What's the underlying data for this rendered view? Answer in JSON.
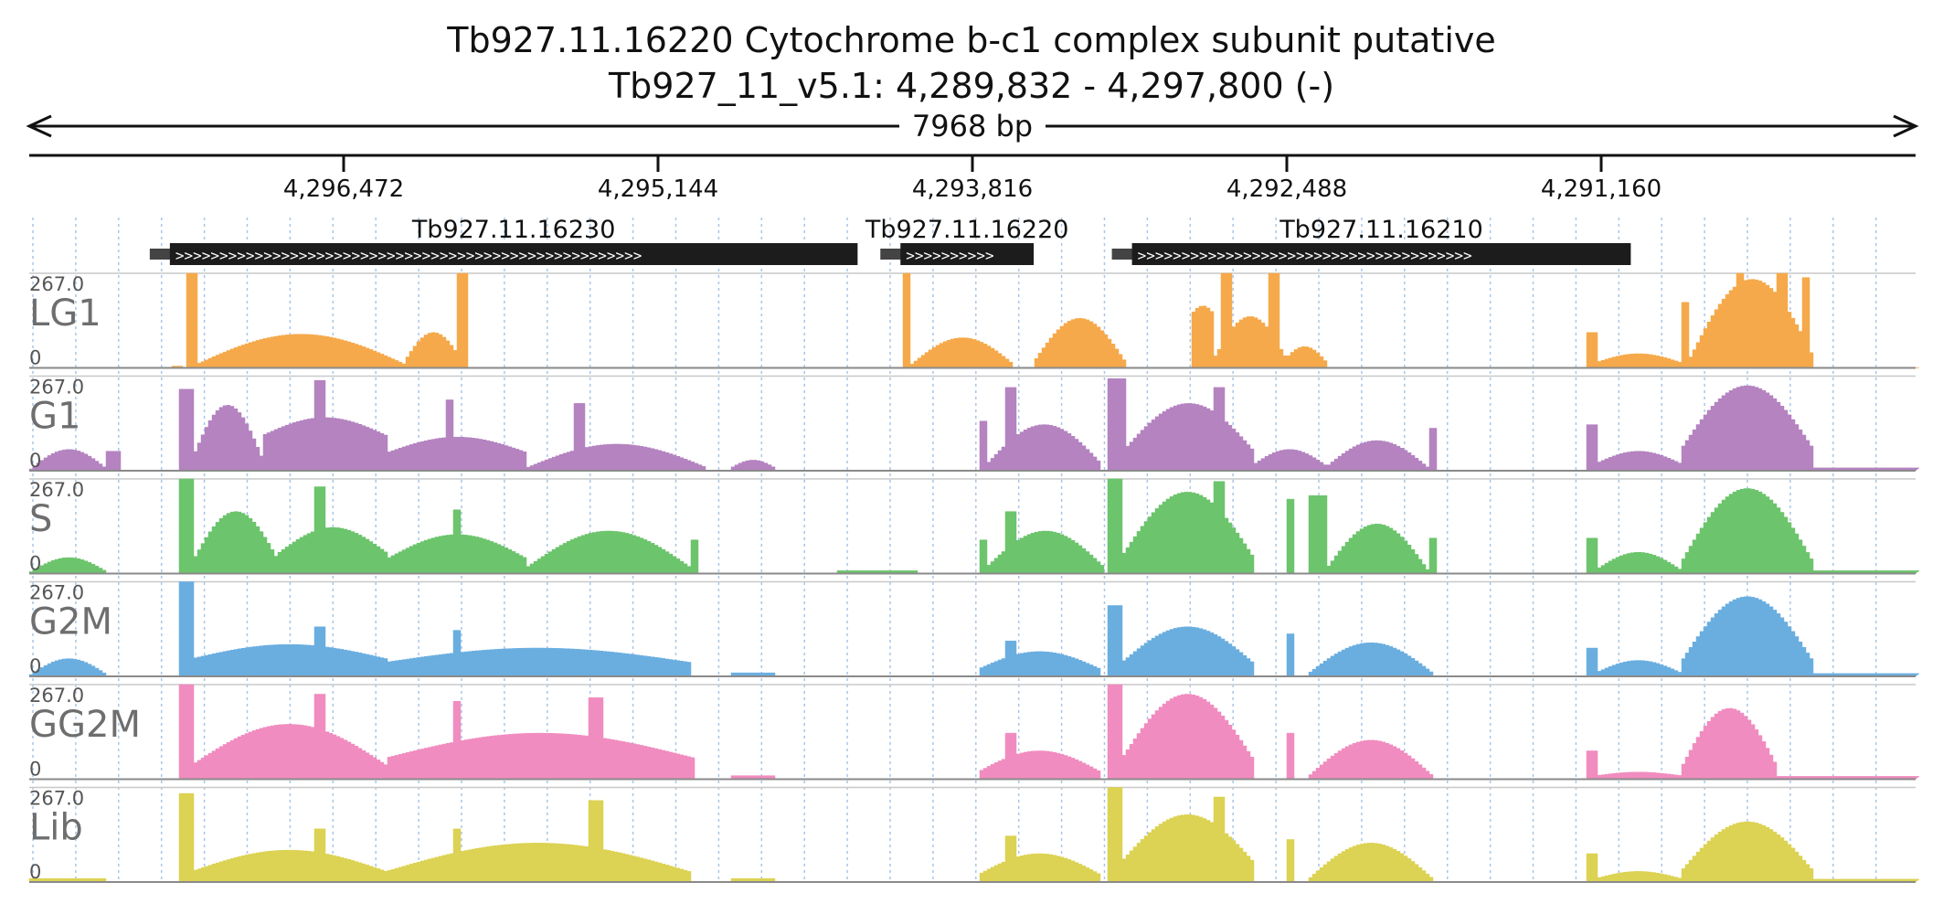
{
  "title": {
    "line1": "Tb927.11.16220  Cytochrome b-c1 complex subunit  putative",
    "line2": "Tb927_11_v5.1: 4,289,832 - 4,297,800 (-)"
  },
  "span_label": "7968 bp",
  "chart_data": {
    "type": "area",
    "genome": {
      "contig": "Tb927_11_v5.1",
      "start": 4289832,
      "end": 4297800,
      "strand": "-",
      "orientation": "reversed",
      "length_label": "7968 bp"
    },
    "ticks": [
      {
        "pos": 4296472,
        "label": "4,296,472"
      },
      {
        "pos": 4295144,
        "label": "4,295,144"
      },
      {
        "pos": 4293816,
        "label": "4,293,816"
      },
      {
        "pos": 4292488,
        "label": "4,292,488"
      },
      {
        "pos": 4291160,
        "label": "4,291,160"
      }
    ],
    "genes": [
      {
        "name": "Tb927.11.16230",
        "start": 4294301,
        "end": 4297206
      },
      {
        "name": "Tb927.11.16220",
        "start": 4293557,
        "end": 4294120
      },
      {
        "name": "Tb927.11.16210",
        "start": 4291035,
        "end": 4293142
      }
    ],
    "tracks": [
      {
        "name": "LG1",
        "color": "#f5a94a",
        "ymax": 267.0,
        "ymax_label": "267.0",
        "ymin_label": "0"
      },
      {
        "name": "G1",
        "color": "#b483c0",
        "ymax": 267.0,
        "ymax_label": "267.0",
        "ymin_label": "0"
      },
      {
        "name": "S",
        "color": "#6cc46c",
        "ymax": 267.0,
        "ymax_label": "267.0",
        "ymin_label": "0"
      },
      {
        "name": "G2M",
        "color": "#6aaee0",
        "ymax": 267.0,
        "ymax_label": "267.0",
        "ymin_label": "0"
      },
      {
        "name": "GG2M",
        "color": "#f08cbf",
        "ymax": 267.0,
        "ymax_label": "267.0",
        "ymin_label": "0"
      },
      {
        "name": "Lib",
        "color": "#dcd253",
        "ymax": 267.0,
        "ymax_label": "267.0",
        "ymin_label": "0"
      }
    ],
    "profiles": {
      "LG1": [
        {
          "from": 4297212,
          "to": 4297152,
          "shape": "flat",
          "level": 5
        },
        {
          "from": 4297150,
          "to": 4297100,
          "shape": "flat",
          "level": 267
        },
        {
          "from": 4297100,
          "to": 4296220,
          "shape": "hump",
          "base": 10,
          "level": 95
        },
        {
          "from": 4296220,
          "to": 4295980,
          "shape": "hump",
          "base": 20,
          "level": 100
        },
        {
          "from": 4296000,
          "to": 4295950,
          "shape": "flat",
          "level": 267
        },
        {
          "from": 4294120,
          "to": 4294080,
          "shape": "flat",
          "level": 267
        },
        {
          "from": 4294080,
          "to": 4293650,
          "shape": "hump",
          "base": 10,
          "level": 85
        },
        {
          "from": 4293560,
          "to": 4293180,
          "shape": "hump",
          "base": 20,
          "level": 140
        },
        {
          "from": 4292900,
          "to": 4292800,
          "shape": "hump",
          "base": 150,
          "level": 175
        },
        {
          "from": 4292800,
          "to": 4292500,
          "shape": "hump",
          "base": 30,
          "level": 145
        },
        {
          "from": 4292780,
          "to": 4292730,
          "shape": "flat",
          "level": 267
        },
        {
          "from": 4292580,
          "to": 4292520,
          "shape": "flat",
          "level": 267
        },
        {
          "from": 4292520,
          "to": 4292320,
          "shape": "hump",
          "base": 10,
          "level": 60
        },
        {
          "from": 4291230,
          "to": 4291190,
          "shape": "flat",
          "level": 100
        },
        {
          "from": 4291190,
          "to": 4290830,
          "shape": "hump",
          "base": 15,
          "level": 40
        },
        {
          "from": 4290830,
          "to": 4290790,
          "shape": "flat",
          "level": 185
        },
        {
          "from": 4290790,
          "to": 4290270,
          "shape": "hump",
          "base": 30,
          "level": 250
        },
        {
          "from": 4290600,
          "to": 4290560,
          "shape": "flat",
          "level": 267
        },
        {
          "from": 4290420,
          "to": 4290380,
          "shape": "flat",
          "level": 267
        },
        {
          "from": 4290320,
          "to": 4290290,
          "shape": "flat",
          "level": 255
        }
      ],
      "G1": [
        {
          "from": 4297800,
          "to": 4297480,
          "shape": "hump",
          "base": 5,
          "level": 60
        },
        {
          "from": 4297480,
          "to": 4297420,
          "shape": "flat",
          "level": 55
        },
        {
          "from": 4297180,
          "to": 4297120,
          "shape": "flat",
          "level": 230
        },
        {
          "from": 4297120,
          "to": 4296820,
          "shape": "hump",
          "base": 30,
          "level": 185
        },
        {
          "from": 4296820,
          "to": 4296300,
          "shape": "hump",
          "base": 100,
          "level": 150
        },
        {
          "from": 4296600,
          "to": 4296560,
          "shape": "flat",
          "level": 255
        },
        {
          "from": 4296300,
          "to": 4295700,
          "shape": "hump",
          "base": 50,
          "level": 95
        },
        {
          "from": 4296050,
          "to": 4296010,
          "shape": "flat",
          "level": 200
        },
        {
          "from": 4295500,
          "to": 4295460,
          "shape": "flat",
          "level": 190
        },
        {
          "from": 4295700,
          "to": 4294950,
          "shape": "hump",
          "base": 10,
          "level": 75
        },
        {
          "from": 4294850,
          "to": 4294650,
          "shape": "hump",
          "base": 5,
          "level": 30
        },
        {
          "from": 4293800,
          "to": 4293760,
          "shape": "flat",
          "level": 140
        },
        {
          "from": 4293760,
          "to": 4293280,
          "shape": "hump",
          "base": 20,
          "level": 130
        },
        {
          "from": 4293680,
          "to": 4293640,
          "shape": "flat",
          "level": 235
        },
        {
          "from": 4293250,
          "to": 4293180,
          "shape": "flat",
          "level": 260
        },
        {
          "from": 4293180,
          "to": 4292640,
          "shape": "hump",
          "base": 60,
          "level": 190
        },
        {
          "from": 4292800,
          "to": 4292760,
          "shape": "flat",
          "level": 235
        },
        {
          "from": 4292640,
          "to": 4292330,
          "shape": "hump",
          "base": 15,
          "level": 60
        },
        {
          "from": 4292330,
          "to": 4291900,
          "shape": "hump",
          "base": 10,
          "level": 85
        },
        {
          "from": 4291900,
          "to": 4291860,
          "shape": "flat",
          "level": 120
        },
        {
          "from": 4291230,
          "to": 4291190,
          "shape": "flat",
          "level": 130
        },
        {
          "from": 4291190,
          "to": 4290830,
          "shape": "hump",
          "base": 20,
          "level": 55
        },
        {
          "from": 4290830,
          "to": 4290270,
          "shape": "hump",
          "base": 60,
          "level": 240
        },
        {
          "from": 4290270,
          "to": 4289832,
          "shape": "flat",
          "level": 8
        }
      ],
      "S": [
        {
          "from": 4297800,
          "to": 4297480,
          "shape": "hump",
          "base": 5,
          "level": 45
        },
        {
          "from": 4297180,
          "to": 4297120,
          "shape": "flat",
          "level": 267
        },
        {
          "from": 4297120,
          "to": 4296750,
          "shape": "hump",
          "base": 30,
          "level": 175
        },
        {
          "from": 4296750,
          "to": 4296300,
          "shape": "hump",
          "base": 60,
          "level": 130
        },
        {
          "from": 4296600,
          "to": 4296560,
          "shape": "flat",
          "level": 245
        },
        {
          "from": 4296300,
          "to": 4295700,
          "shape": "hump",
          "base": 40,
          "level": 110
        },
        {
          "from": 4296020,
          "to": 4295980,
          "shape": "flat",
          "level": 180
        },
        {
          "from": 4295700,
          "to": 4295020,
          "shape": "hump",
          "base": 20,
          "level": 120
        },
        {
          "from": 4295020,
          "to": 4294980,
          "shape": "flat",
          "level": 95
        },
        {
          "from": 4294400,
          "to": 4294050,
          "shape": "flat",
          "level": 8
        },
        {
          "from": 4293800,
          "to": 4293760,
          "shape": "flat",
          "level": 95
        },
        {
          "from": 4293760,
          "to": 4293270,
          "shape": "hump",
          "base": 20,
          "level": 120
        },
        {
          "from": 4293680,
          "to": 4293640,
          "shape": "flat",
          "level": 175
        },
        {
          "from": 4293250,
          "to": 4293190,
          "shape": "flat",
          "level": 267
        },
        {
          "from": 4293190,
          "to": 4292640,
          "shape": "hump",
          "base": 50,
          "level": 230
        },
        {
          "from": 4292800,
          "to": 4292760,
          "shape": "flat",
          "level": 260
        },
        {
          "from": 4292500,
          "to": 4292460,
          "shape": "flat",
          "level": 210
        },
        {
          "from": 4292400,
          "to": 4292330,
          "shape": "flat",
          "level": 220
        },
        {
          "from": 4292330,
          "to": 4291900,
          "shape": "hump",
          "base": 10,
          "level": 140
        },
        {
          "from": 4291900,
          "to": 4291860,
          "shape": "flat",
          "level": 100
        },
        {
          "from": 4291230,
          "to": 4291190,
          "shape": "flat",
          "level": 100
        },
        {
          "from": 4291190,
          "to": 4290830,
          "shape": "hump",
          "base": 10,
          "level": 60
        },
        {
          "from": 4290830,
          "to": 4290270,
          "shape": "hump",
          "base": 30,
          "level": 240
        },
        {
          "from": 4290270,
          "to": 4289832,
          "shape": "flat",
          "level": 8
        }
      ],
      "G2M": [
        {
          "from": 4297800,
          "to": 4297480,
          "shape": "hump",
          "base": 5,
          "level": 50
        },
        {
          "from": 4297180,
          "to": 4297120,
          "shape": "flat",
          "level": 267
        },
        {
          "from": 4297120,
          "to": 4296300,
          "shape": "hump",
          "base": 50,
          "level": 90
        },
        {
          "from": 4296600,
          "to": 4296560,
          "shape": "flat",
          "level": 140
        },
        {
          "from": 4296300,
          "to": 4295020,
          "shape": "hump",
          "base": 40,
          "level": 80
        },
        {
          "from": 4296020,
          "to": 4295980,
          "shape": "flat",
          "level": 130
        },
        {
          "from": 4294850,
          "to": 4294650,
          "shape": "flat",
          "level": 10
        },
        {
          "from": 4293800,
          "to": 4293280,
          "shape": "hump",
          "base": 20,
          "level": 70
        },
        {
          "from": 4293680,
          "to": 4293640,
          "shape": "flat",
          "level": 100
        },
        {
          "from": 4293250,
          "to": 4293190,
          "shape": "flat",
          "level": 200
        },
        {
          "from": 4293190,
          "to": 4292640,
          "shape": "hump",
          "base": 40,
          "level": 140
        },
        {
          "from": 4292500,
          "to": 4292460,
          "shape": "flat",
          "level": 120
        },
        {
          "from": 4292400,
          "to": 4291880,
          "shape": "hump",
          "base": 10,
          "level": 95
        },
        {
          "from": 4291230,
          "to": 4291190,
          "shape": "flat",
          "level": 80
        },
        {
          "from": 4291190,
          "to": 4290830,
          "shape": "hump",
          "base": 10,
          "level": 45
        },
        {
          "from": 4290830,
          "to": 4290270,
          "shape": "hump",
          "base": 40,
          "level": 225
        },
        {
          "from": 4290270,
          "to": 4289832,
          "shape": "flat",
          "level": 8
        }
      ],
      "GG2M": [
        {
          "from": 4297180,
          "to": 4297120,
          "shape": "flat",
          "level": 267
        },
        {
          "from": 4297120,
          "to": 4296300,
          "shape": "hump",
          "base": 40,
          "level": 155
        },
        {
          "from": 4296600,
          "to": 4296560,
          "shape": "flat",
          "level": 240
        },
        {
          "from": 4296300,
          "to": 4295000,
          "shape": "hump",
          "base": 60,
          "level": 130
        },
        {
          "from": 4296020,
          "to": 4295980,
          "shape": "flat",
          "level": 220
        },
        {
          "from": 4295450,
          "to": 4295380,
          "shape": "flat",
          "level": 230
        },
        {
          "from": 4294850,
          "to": 4294650,
          "shape": "flat",
          "level": 10
        },
        {
          "from": 4293800,
          "to": 4293280,
          "shape": "hump",
          "base": 20,
          "level": 80
        },
        {
          "from": 4293680,
          "to": 4293640,
          "shape": "flat",
          "level": 130
        },
        {
          "from": 4293250,
          "to": 4293190,
          "shape": "flat",
          "level": 267
        },
        {
          "from": 4293190,
          "to": 4292640,
          "shape": "hump",
          "base": 60,
          "level": 240
        },
        {
          "from": 4292500,
          "to": 4292460,
          "shape": "flat",
          "level": 130
        },
        {
          "from": 4292400,
          "to": 4291880,
          "shape": "hump",
          "base": 10,
          "level": 110
        },
        {
          "from": 4291230,
          "to": 4291190,
          "shape": "flat",
          "level": 80
        },
        {
          "from": 4291190,
          "to": 4290830,
          "shape": "hump",
          "base": 10,
          "level": 20
        },
        {
          "from": 4290830,
          "to": 4290420,
          "shape": "hump",
          "base": 30,
          "level": 200
        },
        {
          "from": 4290420,
          "to": 4289832,
          "shape": "flat",
          "level": 8
        }
      ],
      "Lib": [
        {
          "from": 4297800,
          "to": 4297480,
          "shape": "flat",
          "level": 10
        },
        {
          "from": 4297180,
          "to": 4297120,
          "shape": "flat",
          "level": 250
        },
        {
          "from": 4297120,
          "to": 4296300,
          "shape": "hump",
          "base": 30,
          "level": 90
        },
        {
          "from": 4296600,
          "to": 4296560,
          "shape": "flat",
          "level": 150
        },
        {
          "from": 4296300,
          "to": 4295020,
          "shape": "hump",
          "base": 30,
          "level": 110
        },
        {
          "from": 4296020,
          "to": 4295980,
          "shape": "flat",
          "level": 150
        },
        {
          "from": 4295450,
          "to": 4295380,
          "shape": "flat",
          "level": 230
        },
        {
          "from": 4294850,
          "to": 4294650,
          "shape": "flat",
          "level": 10
        },
        {
          "from": 4293800,
          "to": 4293280,
          "shape": "hump",
          "base": 20,
          "level": 80
        },
        {
          "from": 4293680,
          "to": 4293640,
          "shape": "flat",
          "level": 130
        },
        {
          "from": 4293250,
          "to": 4293190,
          "shape": "flat",
          "level": 267
        },
        {
          "from": 4293190,
          "to": 4292640,
          "shape": "hump",
          "base": 60,
          "level": 190
        },
        {
          "from": 4292800,
          "to": 4292760,
          "shape": "flat",
          "level": 240
        },
        {
          "from": 4292500,
          "to": 4292460,
          "shape": "flat",
          "level": 120
        },
        {
          "from": 4292400,
          "to": 4291880,
          "shape": "hump",
          "base": 10,
          "level": 110
        },
        {
          "from": 4291230,
          "to": 4291190,
          "shape": "flat",
          "level": 80
        },
        {
          "from": 4291190,
          "to": 4290830,
          "shape": "hump",
          "base": 10,
          "level": 30
        },
        {
          "from": 4290830,
          "to": 4290270,
          "shape": "hump",
          "base": 30,
          "level": 170
        },
        {
          "from": 4290270,
          "to": 4289832,
          "shape": "flat",
          "level": 8
        }
      ]
    }
  }
}
